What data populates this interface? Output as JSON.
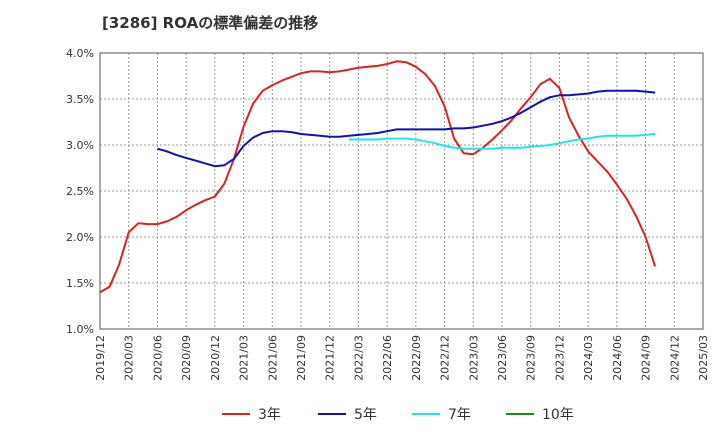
{
  "chart_data": {
    "type": "line",
    "title": "[3286]  ROAの標準偏差の推移",
    "xlabel": "",
    "ylabel": "",
    "ylim": [
      1.0,
      4.0
    ],
    "y_ticks": [
      1.0,
      1.5,
      2.0,
      2.5,
      3.0,
      3.5,
      4.0
    ],
    "y_tick_labels": [
      "1.0%",
      "1.5%",
      "2.0%",
      "2.5%",
      "3.0%",
      "3.5%",
      "4.0%"
    ],
    "x_ticks": [
      "2019/12",
      "2020/03",
      "2020/06",
      "2020/09",
      "2020/12",
      "2021/03",
      "2021/06",
      "2021/09",
      "2021/12",
      "2022/03",
      "2022/06",
      "2022/09",
      "2022/12",
      "2023/03",
      "2023/06",
      "2023/09",
      "2023/12",
      "2024/03",
      "2024/06",
      "2024/09",
      "2024/12",
      "2025/03"
    ],
    "legend_position": "bottom",
    "grid": true,
    "series": [
      {
        "name": "3年",
        "color": "#dd2222",
        "points": [
          [
            0,
            1.4
          ],
          [
            1,
            1.46
          ],
          [
            2,
            1.7
          ],
          [
            3,
            2.05
          ],
          [
            4,
            2.15
          ],
          [
            5,
            2.14
          ],
          [
            6,
            2.14
          ],
          [
            7,
            2.17
          ],
          [
            8,
            2.22
          ],
          [
            9,
            2.29
          ],
          [
            10,
            2.35
          ],
          [
            11,
            2.4
          ],
          [
            12,
            2.44
          ],
          [
            13,
            2.58
          ],
          [
            14,
            2.85
          ],
          [
            15,
            3.2
          ],
          [
            16,
            3.45
          ],
          [
            17,
            3.59
          ],
          [
            18,
            3.65
          ],
          [
            19,
            3.7
          ],
          [
            20,
            3.74
          ],
          [
            21,
            3.78
          ],
          [
            22,
            3.8
          ],
          [
            23,
            3.8
          ],
          [
            24,
            3.79
          ],
          [
            25,
            3.8
          ],
          [
            26,
            3.82
          ],
          [
            27,
            3.84
          ],
          [
            28,
            3.85
          ],
          [
            29,
            3.86
          ],
          [
            30,
            3.88
          ],
          [
            31,
            3.91
          ],
          [
            32,
            3.9
          ],
          [
            33,
            3.85
          ],
          [
            34,
            3.77
          ],
          [
            35,
            3.64
          ],
          [
            36,
            3.42
          ],
          [
            37,
            3.07
          ],
          [
            38,
            2.91
          ],
          [
            39,
            2.9
          ],
          [
            40,
            2.97
          ],
          [
            41,
            3.06
          ],
          [
            42,
            3.16
          ],
          [
            43,
            3.27
          ],
          [
            44,
            3.4
          ],
          [
            45,
            3.52
          ],
          [
            46,
            3.66
          ],
          [
            47,
            3.72
          ],
          [
            48,
            3.62
          ],
          [
            49,
            3.3
          ],
          [
            50,
            3.1
          ],
          [
            51,
            2.93
          ],
          [
            52,
            2.82
          ],
          [
            53,
            2.71
          ],
          [
            54,
            2.57
          ],
          [
            55,
            2.42
          ],
          [
            56,
            2.23
          ],
          [
            57,
            2.0
          ],
          [
            58,
            1.68
          ]
        ]
      },
      {
        "name": "5年",
        "color": "#1111bb",
        "points": [
          [
            6,
            2.96
          ],
          [
            7,
            2.93
          ],
          [
            8,
            2.89
          ],
          [
            9,
            2.86
          ],
          [
            10,
            2.83
          ],
          [
            11,
            2.8
          ],
          [
            12,
            2.77
          ],
          [
            13,
            2.78
          ],
          [
            14,
            2.85
          ],
          [
            15,
            2.99
          ],
          [
            16,
            3.08
          ],
          [
            17,
            3.13
          ],
          [
            18,
            3.15
          ],
          [
            19,
            3.15
          ],
          [
            20,
            3.14
          ],
          [
            21,
            3.12
          ],
          [
            22,
            3.11
          ],
          [
            23,
            3.1
          ],
          [
            24,
            3.09
          ],
          [
            25,
            3.09
          ],
          [
            26,
            3.1
          ],
          [
            27,
            3.11
          ],
          [
            28,
            3.12
          ],
          [
            29,
            3.13
          ],
          [
            30,
            3.15
          ],
          [
            31,
            3.17
          ],
          [
            32,
            3.17
          ],
          [
            33,
            3.17
          ],
          [
            34,
            3.17
          ],
          [
            35,
            3.17
          ],
          [
            36,
            3.17
          ],
          [
            37,
            3.18
          ],
          [
            38,
            3.18
          ],
          [
            39,
            3.19
          ],
          [
            40,
            3.21
          ],
          [
            41,
            3.23
          ],
          [
            42,
            3.26
          ],
          [
            43,
            3.3
          ],
          [
            44,
            3.35
          ],
          [
            45,
            3.41
          ],
          [
            46,
            3.47
          ],
          [
            47,
            3.52
          ],
          [
            48,
            3.54
          ],
          [
            49,
            3.54
          ],
          [
            50,
            3.55
          ],
          [
            51,
            3.56
          ],
          [
            52,
            3.58
          ],
          [
            53,
            3.59
          ],
          [
            54,
            3.59
          ],
          [
            55,
            3.59
          ],
          [
            56,
            3.59
          ],
          [
            57,
            3.58
          ],
          [
            58,
            3.57
          ]
        ]
      },
      {
        "name": "7年",
        "color": "#22e6e6",
        "points": [
          [
            26,
            3.06
          ],
          [
            27,
            3.06
          ],
          [
            28,
            3.06
          ],
          [
            29,
            3.06
          ],
          [
            30,
            3.07
          ],
          [
            31,
            3.07
          ],
          [
            32,
            3.07
          ],
          [
            33,
            3.06
          ],
          [
            34,
            3.04
          ],
          [
            35,
            3.02
          ],
          [
            36,
            2.99
          ],
          [
            37,
            2.97
          ],
          [
            38,
            2.96
          ],
          [
            39,
            2.96
          ],
          [
            40,
            2.96
          ],
          [
            41,
            2.96
          ],
          [
            42,
            2.97
          ],
          [
            43,
            2.97
          ],
          [
            44,
            2.97
          ],
          [
            45,
            2.98
          ],
          [
            46,
            2.99
          ],
          [
            47,
            3.0
          ],
          [
            48,
            3.02
          ],
          [
            49,
            3.04
          ],
          [
            50,
            3.06
          ],
          [
            51,
            3.07
          ],
          [
            52,
            3.09
          ],
          [
            53,
            3.1
          ],
          [
            54,
            3.1
          ],
          [
            55,
            3.1
          ],
          [
            56,
            3.1
          ],
          [
            57,
            3.11
          ],
          [
            58,
            3.12
          ]
        ]
      },
      {
        "name": "10年",
        "color": "#228822",
        "points": []
      }
    ]
  }
}
